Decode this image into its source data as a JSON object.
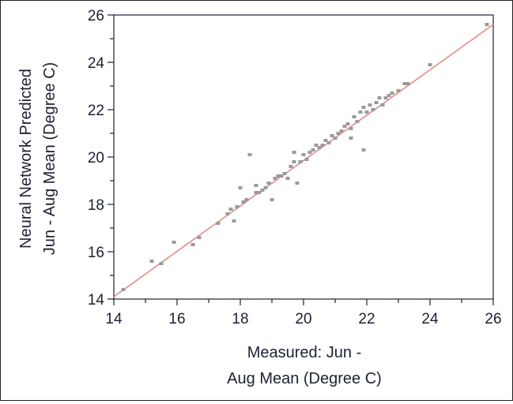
{
  "chart_data": {
    "type": "scatter",
    "xlabel_lines": [
      "Measured: Jun -",
      "Aug Mean (Degree C)"
    ],
    "ylabel_lines": [
      "Neural Network Predicted",
      "Jun - Aug Mean (Degree C)"
    ],
    "xlim": [
      14,
      26
    ],
    "ylim": [
      14,
      26
    ],
    "xticks": [
      "14",
      "16",
      "18",
      "20",
      "22",
      "24",
      "26"
    ],
    "yticks": [
      "14",
      "16",
      "18",
      "20",
      "22",
      "24",
      "26"
    ],
    "grid": false,
    "legend": "none",
    "colors": {
      "points": "#9a9a9a",
      "reference_line": "#e58a8a",
      "axis": "#1c2133"
    },
    "reference_line": {
      "from": [
        14,
        14.1
      ],
      "to": [
        26,
        25.6
      ]
    },
    "points": [
      [
        14.3,
        14.4
      ],
      [
        15.2,
        15.6
      ],
      [
        15.5,
        15.5
      ],
      [
        15.9,
        16.4
      ],
      [
        16.5,
        16.3
      ],
      [
        16.7,
        16.6
      ],
      [
        17.3,
        17.2
      ],
      [
        17.6,
        17.6
      ],
      [
        17.7,
        17.8
      ],
      [
        17.8,
        17.3
      ],
      [
        17.9,
        17.9
      ],
      [
        18.0,
        18.7
      ],
      [
        18.1,
        18.1
      ],
      [
        18.2,
        18.2
      ],
      [
        18.3,
        20.1
      ],
      [
        18.5,
        18.8
      ],
      [
        18.5,
        18.5
      ],
      [
        18.6,
        18.5
      ],
      [
        18.7,
        18.6
      ],
      [
        18.8,
        18.7
      ],
      [
        18.9,
        18.9
      ],
      [
        19.0,
        18.2
      ],
      [
        19.1,
        19.1
      ],
      [
        19.2,
        19.2
      ],
      [
        19.3,
        19.2
      ],
      [
        19.4,
        19.3
      ],
      [
        19.5,
        19.1
      ],
      [
        19.6,
        19.6
      ],
      [
        19.7,
        19.8
      ],
      [
        19.7,
        20.2
      ],
      [
        19.8,
        18.9
      ],
      [
        19.9,
        19.8
      ],
      [
        20.0,
        20.1
      ],
      [
        20.1,
        19.9
      ],
      [
        20.2,
        20.2
      ],
      [
        20.3,
        20.3
      ],
      [
        20.4,
        20.5
      ],
      [
        20.5,
        20.4
      ],
      [
        20.6,
        20.5
      ],
      [
        20.7,
        20.7
      ],
      [
        20.8,
        20.6
      ],
      [
        20.9,
        20.9
      ],
      [
        21.0,
        20.8
      ],
      [
        21.1,
        21.0
      ],
      [
        21.2,
        21.1
      ],
      [
        21.3,
        21.3
      ],
      [
        21.4,
        21.4
      ],
      [
        21.5,
        21.2
      ],
      [
        21.5,
        20.8
      ],
      [
        21.6,
        21.7
      ],
      [
        21.7,
        21.5
      ],
      [
        21.8,
        21.9
      ],
      [
        21.9,
        22.1
      ],
      [
        21.9,
        20.3
      ],
      [
        22.0,
        21.9
      ],
      [
        22.1,
        22.2
      ],
      [
        22.2,
        22.0
      ],
      [
        22.3,
        22.3
      ],
      [
        22.4,
        22.5
      ],
      [
        22.5,
        22.2
      ],
      [
        22.6,
        22.5
      ],
      [
        22.7,
        22.6
      ],
      [
        22.8,
        22.7
      ],
      [
        23.0,
        22.8
      ],
      [
        23.2,
        23.1
      ],
      [
        23.3,
        23.1
      ],
      [
        24.0,
        23.9
      ],
      [
        25.8,
        25.6
      ]
    ]
  }
}
